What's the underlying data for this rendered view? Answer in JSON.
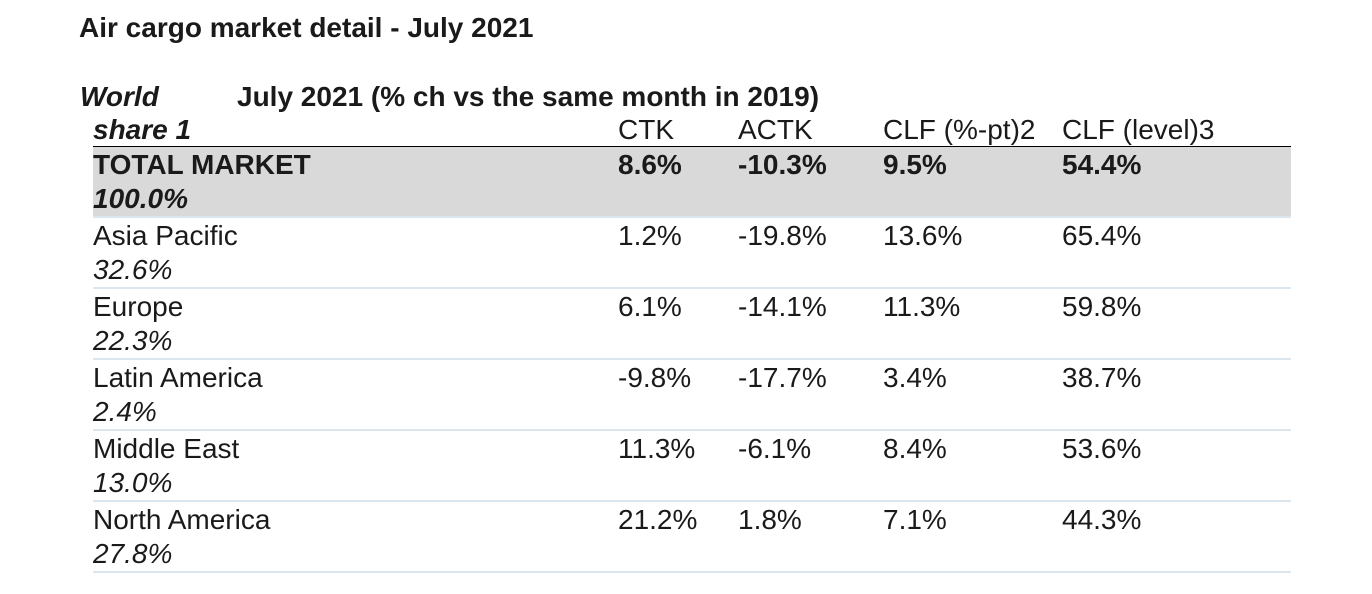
{
  "title": "Air cargo market detail - July 2021",
  "header": {
    "world_label": "World",
    "period_label": "July 2021 (% ch vs the same month in 2019)",
    "share_label": "share 1",
    "columns": [
      "CTK",
      "ACTK",
      "CLF (%-pt)2",
      "CLF (level)3"
    ]
  },
  "rows": [
    {
      "name": "TOTAL MARKET",
      "share": "100.0%",
      "ctk": "8.6%",
      "actk": "-10.3%",
      "clf_pt": "9.5%",
      "clf_level": "54.4%"
    },
    {
      "name": "Asia Pacific",
      "share": "32.6%",
      "ctk": "1.2%",
      "actk": "-19.8%",
      "clf_pt": "13.6%",
      "clf_level": "65.4%"
    },
    {
      "name": "Europe",
      "share": "22.3%",
      "ctk": "6.1%",
      "actk": "-14.1%",
      "clf_pt": "11.3%",
      "clf_level": "59.8%"
    },
    {
      "name": "Latin America",
      "share": "2.4%",
      "ctk": "-9.8%",
      "actk": "-17.7%",
      "clf_pt": "3.4%",
      "clf_level": "38.7%"
    },
    {
      "name": "Middle East",
      "share": "13.0%",
      "ctk": "11.3%",
      "actk": "-6.1%",
      "clf_pt": "8.4%",
      "clf_level": "53.6%"
    },
    {
      "name": "North America",
      "share": "27.8%",
      "ctk": "21.2%",
      "actk": "1.8%",
      "clf_pt": "7.1%",
      "clf_level": "44.3%"
    }
  ],
  "colors": {
    "total_row_bg": "#d9d9d9",
    "row_divider": "#dce6ef",
    "header_rule": "#000000"
  }
}
